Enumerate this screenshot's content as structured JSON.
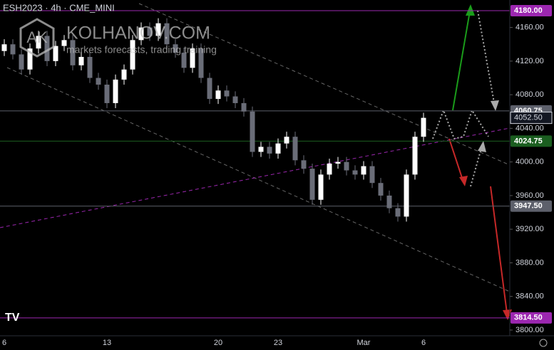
{
  "chart_data": {
    "type": "candlestick",
    "title": "ESH2023 · 4h · CME_MINI",
    "watermark": {
      "logo": "AK",
      "brand": "KOLHANOV.COM",
      "tagline": "markets forecasts, trading training"
    },
    "categories": [
      "6",
      null,
      null,
      null,
      null,
      null,
      null,
      null,
      null,
      null,
      null,
      null,
      "13",
      null,
      null,
      null,
      null,
      null,
      null,
      null,
      null,
      null,
      null,
      null,
      null,
      "20",
      null,
      null,
      null,
      null,
      null,
      null,
      "23",
      null,
      null,
      null,
      null,
      null,
      null,
      null,
      null,
      null,
      "Mar",
      null,
      null,
      null,
      null,
      null,
      null,
      "6"
    ],
    "open": [
      4132,
      4140,
      4128,
      4110,
      4135,
      4150,
      4120,
      4138,
      4145,
      4115,
      4125,
      4100,
      4092,
      4070,
      4098,
      4110,
      4145,
      4160,
      4150,
      4165,
      4140,
      4130,
      4112,
      4135,
      4100,
      4075,
      4085,
      4078,
      4070,
      4060,
      4012,
      4018,
      4010,
      4022,
      4030,
      4002,
      3992,
      3955,
      3985,
      3998,
      4000,
      3990,
      3985,
      3995,
      3975,
      3960,
      3945,
      3935,
      3985,
      4030
    ],
    "high": [
      4146,
      4146,
      4134,
      4141,
      4156,
      4156,
      4144,
      4151,
      4151,
      4131,
      4131,
      4106,
      4098,
      4104,
      4116,
      4151,
      4166,
      4166,
      4171,
      4171,
      4146,
      4136,
      4141,
      4141,
      4106,
      4091,
      4091,
      4084,
      4076,
      4066,
      4024,
      4024,
      4028,
      4036,
      4036,
      4008,
      3998,
      3991,
      4004,
      4006,
      4006,
      3996,
      4001,
      4001,
      3981,
      3966,
      3951,
      3991,
      4036,
      4058.5
    ],
    "low": [
      4126,
      4122,
      4104,
      4104,
      4129,
      4114,
      4114,
      4132,
      4109,
      4109,
      4094,
      4086,
      4064,
      4064,
      4092,
      4104,
      4139,
      4144,
      4144,
      4134,
      4124,
      4106,
      4106,
      4094,
      4069,
      4069,
      4072,
      4064,
      4054,
      4006,
      4006,
      4004,
      4004,
      4016,
      3996,
      3986,
      3949,
      3949,
      3979,
      3992,
      3984,
      3979,
      3979,
      3969,
      3954,
      3939,
      3929,
      3929,
      3979,
      4024
    ],
    "close": [
      4140,
      4128,
      4110,
      4135,
      4150,
      4120,
      4138,
      4145,
      4115,
      4125,
      4100,
      4092,
      4070,
      4098,
      4110,
      4145,
      4160,
      4150,
      4165,
      4140,
      4130,
      4112,
      4135,
      4100,
      4075,
      4085,
      4078,
      4070,
      4060,
      4012,
      4018,
      4010,
      4022,
      4030,
      4002,
      3992,
      3955,
      3985,
      3998,
      4000,
      3990,
      3985,
      3995,
      3975,
      3960,
      3945,
      3935,
      3985,
      4030,
      4052.5
    ],
    "up_color": "#ffffff",
    "down_color": "#6a6d78",
    "ylim": [
      3793.2,
      4192.7
    ],
    "yticks": [
      {
        "value": 3800,
        "label": "3800.00"
      },
      {
        "value": 3840,
        "label": "3840.00"
      },
      {
        "value": 3880,
        "label": "3880.00"
      },
      {
        "value": 3920,
        "label": "3920.00"
      },
      {
        "value": 3960,
        "label": "3960.00"
      },
      {
        "value": 4000,
        "label": "4000.00"
      },
      {
        "value": 4040,
        "label": "4040.00"
      },
      {
        "value": 4080,
        "label": "4080.00"
      },
      {
        "value": 4120,
        "label": "4120.00"
      },
      {
        "value": 4160,
        "label": "4160.00"
      }
    ],
    "levels": [
      {
        "value": 4180,
        "label": "4180.00",
        "color": "#9c27b0"
      },
      {
        "value": 4060.75,
        "label": "4060.75",
        "color": "#5d606b"
      },
      {
        "value": 4024.75,
        "label": "4024.75",
        "color": "#1b5e20"
      },
      {
        "value": 3947.5,
        "label": "3947.50",
        "color": "#5d606b"
      },
      {
        "value": 3814.5,
        "label": "3814.50",
        "color": "#9c27b0"
      }
    ],
    "last_price": {
      "value": 4052.5,
      "label": "4052.50"
    }
  }
}
